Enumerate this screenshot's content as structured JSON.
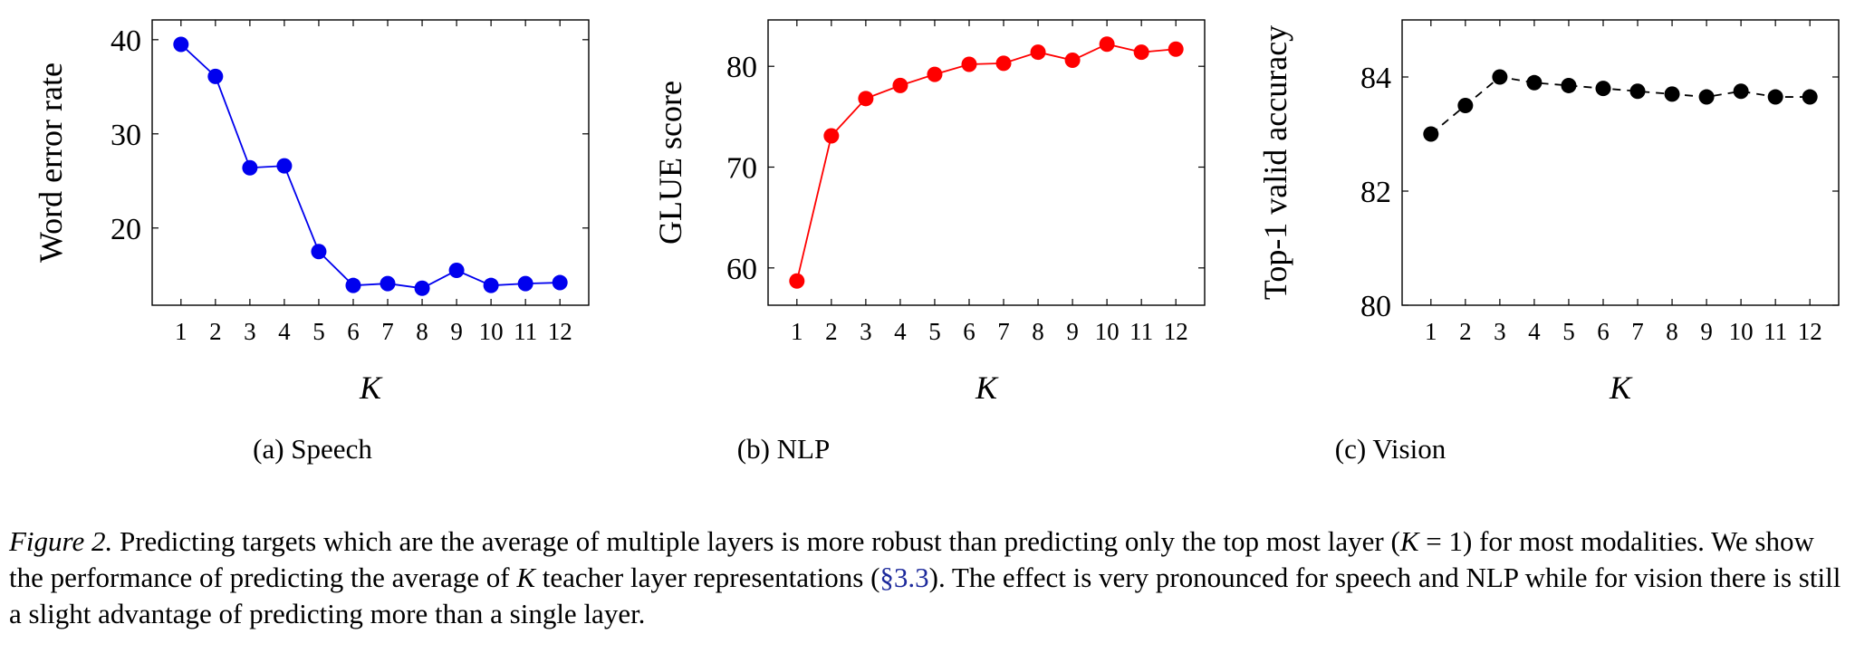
{
  "chart_data": [
    {
      "type": "line",
      "subcaption": "(a) Speech",
      "xlabel": "K",
      "ylabel": "Word error rate",
      "categories": [
        "1",
        "2",
        "3",
        "4",
        "5",
        "6",
        "7",
        "8",
        "9",
        "10",
        "11",
        "12"
      ],
      "y_ticks": [
        "20",
        "30",
        "40"
      ],
      "ylim": [
        11.8,
        42.1
      ],
      "series": [
        {
          "values": [
            39.5,
            36.1,
            26.4,
            26.6,
            17.5,
            13.9,
            14.1,
            13.6,
            15.5,
            13.9,
            14.1,
            14.2
          ],
          "color": "#0000ee",
          "line_style": "solid"
        }
      ]
    },
    {
      "type": "line",
      "subcaption": "(b) NLP",
      "xlabel": "K",
      "ylabel": "GLUE score",
      "categories": [
        "1",
        "2",
        "3",
        "4",
        "5",
        "6",
        "7",
        "8",
        "9",
        "10",
        "11",
        "12"
      ],
      "y_ticks": [
        "60",
        "70",
        "80"
      ],
      "ylim": [
        56.3,
        84.6
      ],
      "series": [
        {
          "values": [
            58.7,
            73.1,
            76.8,
            78.1,
            79.2,
            80.2,
            80.3,
            81.4,
            80.6,
            82.2,
            81.4,
            81.7
          ],
          "color": "#ff0000",
          "line_style": "solid"
        }
      ]
    },
    {
      "type": "line",
      "subcaption": "(c) Vision",
      "xlabel": "K",
      "ylabel": "Top-1 valid accuracy",
      "categories": [
        "1",
        "2",
        "3",
        "4",
        "5",
        "6",
        "7",
        "8",
        "9",
        "10",
        "11",
        "12"
      ],
      "y_ticks": [
        "80",
        "82",
        "84"
      ],
      "ylim": [
        80,
        85
      ],
      "series": [
        {
          "values": [
            83.0,
            83.5,
            84.0,
            83.9,
            83.85,
            83.8,
            83.75,
            83.7,
            83.65,
            83.75,
            83.65,
            83.65
          ],
          "color": "#000000",
          "line_style": "dashed"
        }
      ]
    }
  ],
  "caption": {
    "lead": "Figure 2.",
    "part1": " Predicting targets which are the average of multiple layers is more robust than predicting only the top most layer (",
    "math1": "K",
    "part2": " = 1) for most modalities. We show the performance of predicting the average of ",
    "math2": "K",
    "part3": " teacher layer representations (",
    "ref": "§3.3",
    "part4": "). The effect is very pronounced for speech and NLP while for vision there is still a slight advantage of predicting more than a single layer."
  }
}
